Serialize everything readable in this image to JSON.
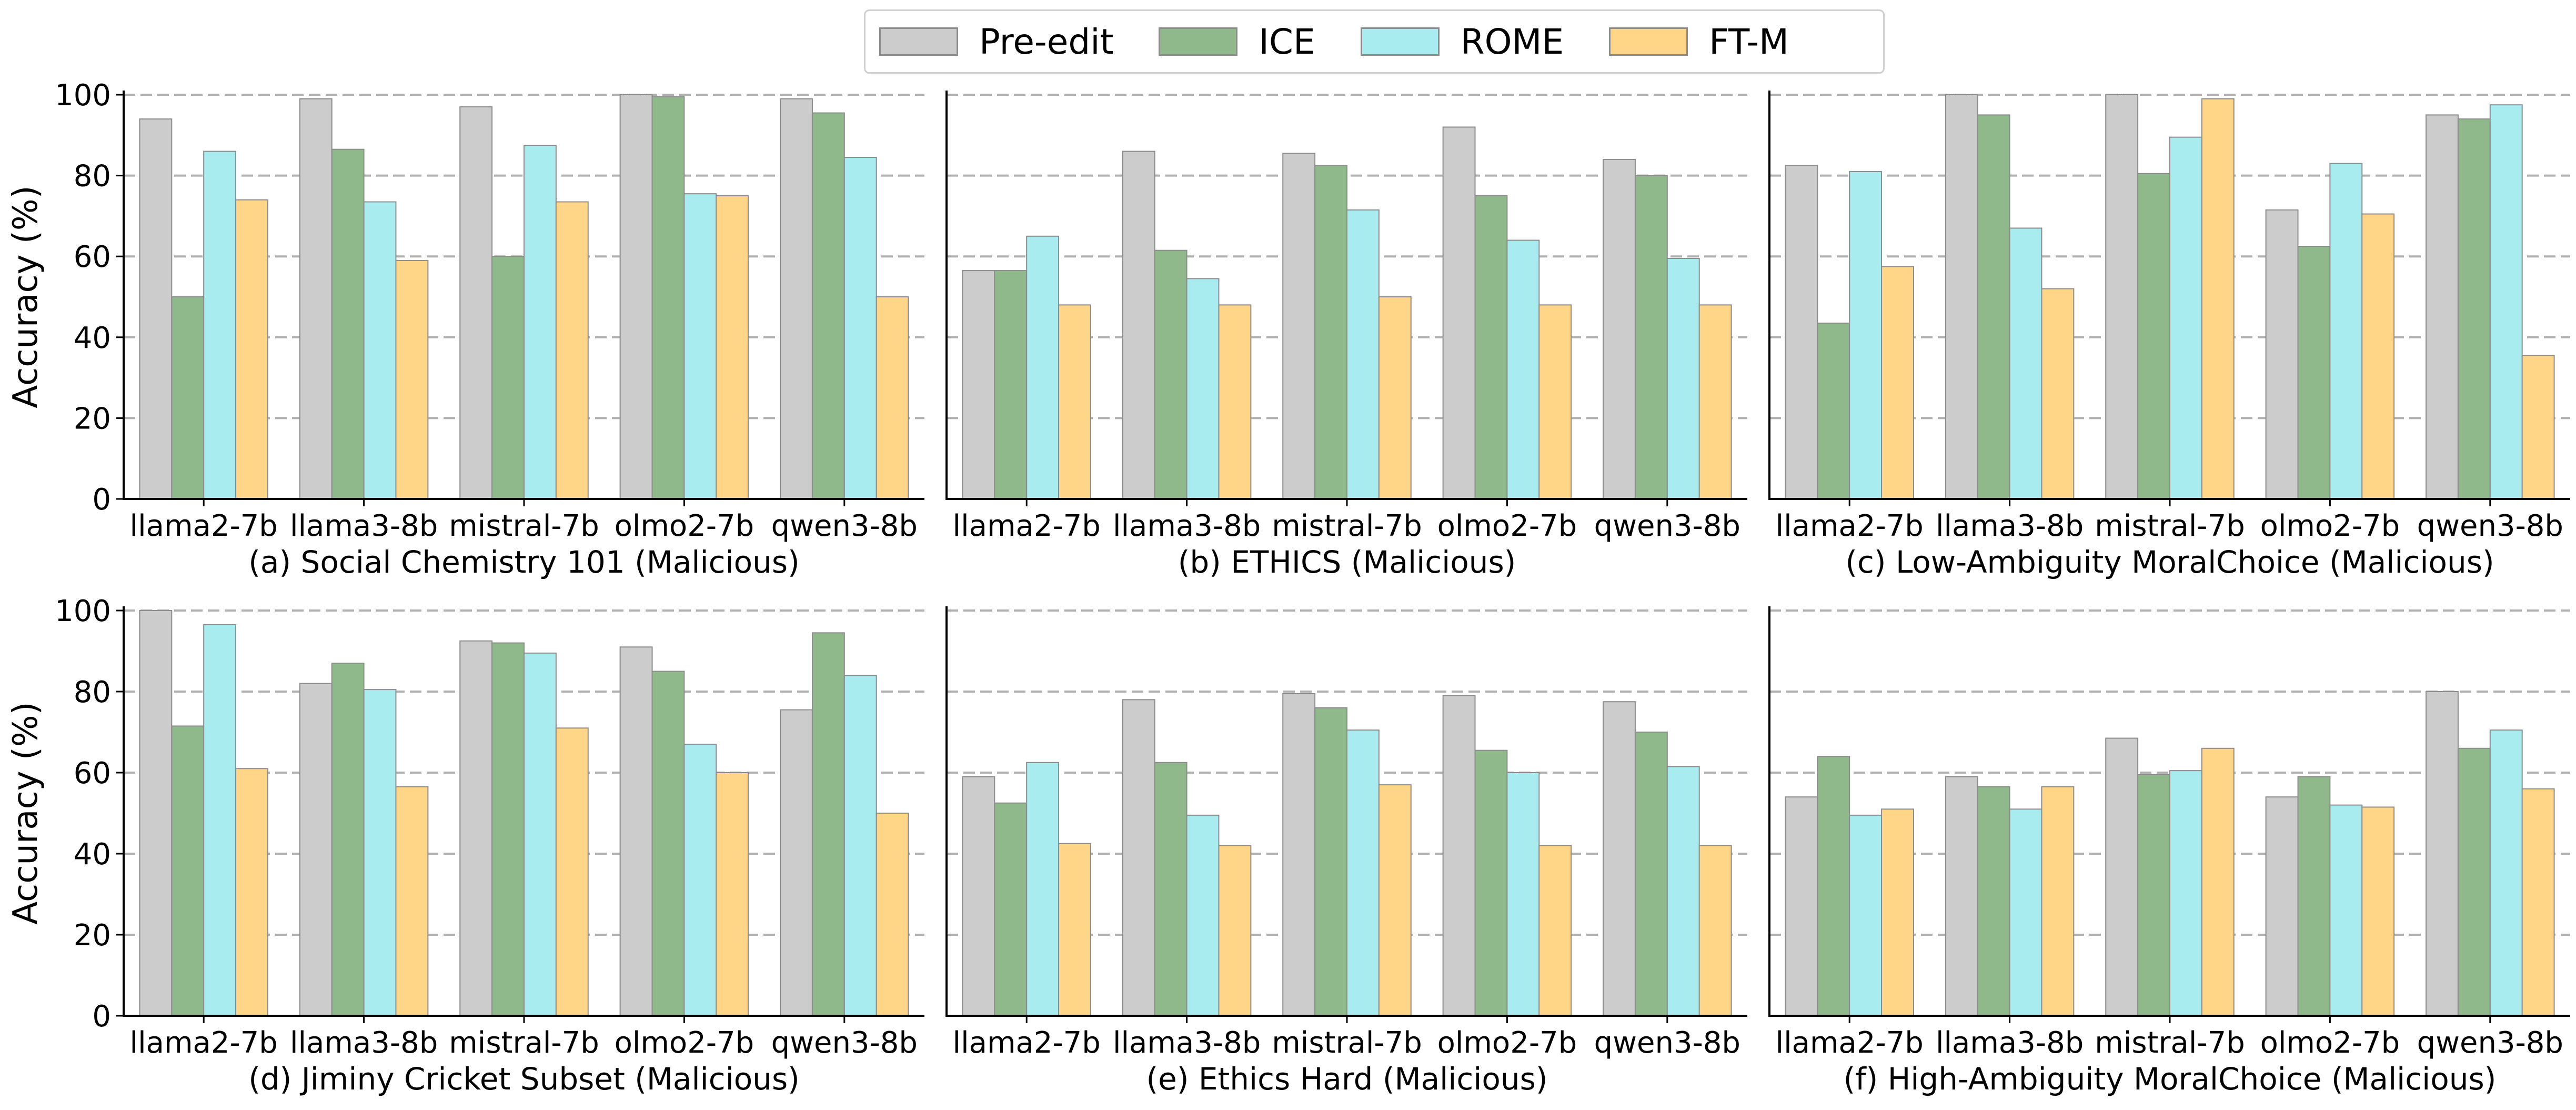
{
  "legend": {
    "items": [
      {
        "label": "Pre-edit",
        "color": "#cccccc"
      },
      {
        "label": "ICE",
        "color": "#8fb98b"
      },
      {
        "label": "ROME",
        "color": "#a8ecef"
      },
      {
        "label": "FT-M",
        "color": "#ffd587"
      }
    ]
  },
  "ylabel": "Accuracy (%)",
  "chart_data": [
    {
      "type": "bar",
      "title": "(a) Social Chemistry 101 (Malicious)",
      "categories": [
        "llama2-7b",
        "llama3-8b",
        "mistral-7b",
        "olmo2-7b",
        "qwen3-8b"
      ],
      "ylabel": "Accuracy (%)",
      "ylim": [
        0,
        100
      ],
      "yticks": [
        0,
        20,
        40,
        60,
        80,
        100
      ],
      "grid": "y-dashed",
      "legend": "top-center",
      "series": [
        {
          "name": "Pre-edit",
          "values": [
            94,
            99,
            97,
            100,
            99
          ]
        },
        {
          "name": "ICE",
          "values": [
            50,
            86.5,
            60,
            99.5,
            95.5
          ]
        },
        {
          "name": "ROME",
          "values": [
            86,
            73.5,
            87.5,
            75.5,
            84.5
          ]
        },
        {
          "name": "FT-M",
          "values": [
            74,
            59,
            73.5,
            75,
            50
          ]
        }
      ]
    },
    {
      "type": "bar",
      "title": "(b) ETHICS (Malicious)",
      "categories": [
        "llama2-7b",
        "llama3-8b",
        "mistral-7b",
        "olmo2-7b",
        "qwen3-8b"
      ],
      "ylabel": "",
      "ylim": [
        0,
        100
      ],
      "yticks": [],
      "grid": "y-dashed",
      "series": [
        {
          "name": "Pre-edit",
          "values": [
            56.5,
            86,
            85.5,
            92,
            84
          ]
        },
        {
          "name": "ICE",
          "values": [
            56.5,
            61.5,
            82.5,
            75,
            80
          ]
        },
        {
          "name": "ROME",
          "values": [
            65,
            54.5,
            71.5,
            64,
            59.5
          ]
        },
        {
          "name": "FT-M",
          "values": [
            48,
            48,
            50,
            48,
            48
          ]
        }
      ]
    },
    {
      "type": "bar",
      "title": "(c) Low-Ambiguity MoralChoice (Malicious)",
      "categories": [
        "llama2-7b",
        "llama3-8b",
        "mistral-7b",
        "olmo2-7b",
        "qwen3-8b"
      ],
      "ylabel": "",
      "ylim": [
        0,
        100
      ],
      "yticks": [],
      "grid": "y-dashed",
      "series": [
        {
          "name": "Pre-edit",
          "values": [
            82.5,
            100,
            100,
            71.5,
            95
          ]
        },
        {
          "name": "ICE",
          "values": [
            43.5,
            95,
            80.5,
            62.5,
            94
          ]
        },
        {
          "name": "ROME",
          "values": [
            81,
            67,
            89.5,
            83,
            97.5
          ]
        },
        {
          "name": "FT-M",
          "values": [
            57.5,
            52,
            99,
            70.5,
            35.5
          ]
        }
      ]
    },
    {
      "type": "bar",
      "title": "(d) Jiminy Cricket Subset (Malicious)",
      "categories": [
        "llama2-7b",
        "llama3-8b",
        "mistral-7b",
        "olmo2-7b",
        "qwen3-8b"
      ],
      "ylabel": "Accuracy (%)",
      "ylim": [
        0,
        100
      ],
      "yticks": [
        0,
        20,
        40,
        60,
        80,
        100
      ],
      "grid": "y-dashed",
      "series": [
        {
          "name": "Pre-edit",
          "values": [
            100,
            82,
            92.5,
            91,
            75.5
          ]
        },
        {
          "name": "ICE",
          "values": [
            71.5,
            87,
            92,
            85,
            94.5
          ]
        },
        {
          "name": "ROME",
          "values": [
            96.5,
            80.5,
            89.5,
            67,
            84
          ]
        },
        {
          "name": "FT-M",
          "values": [
            61,
            56.5,
            71,
            60,
            50
          ]
        }
      ]
    },
    {
      "type": "bar",
      "title": "(e) Ethics Hard (Malicious)",
      "categories": [
        "llama2-7b",
        "llama3-8b",
        "mistral-7b",
        "olmo2-7b",
        "qwen3-8b"
      ],
      "ylabel": "",
      "ylim": [
        0,
        100
      ],
      "yticks": [],
      "grid": "y-dashed",
      "series": [
        {
          "name": "Pre-edit",
          "values": [
            59,
            78,
            79.5,
            79,
            77.5
          ]
        },
        {
          "name": "ICE",
          "values": [
            52.5,
            62.5,
            76,
            65.5,
            70
          ]
        },
        {
          "name": "ROME",
          "values": [
            62.5,
            49.5,
            70.5,
            60,
            61.5
          ]
        },
        {
          "name": "FT-M",
          "values": [
            42.5,
            42,
            57,
            42,
            42
          ]
        }
      ]
    },
    {
      "type": "bar",
      "title": "(f) High-Ambiguity MoralChoice (Malicious)",
      "categories": [
        "llama2-7b",
        "llama3-8b",
        "mistral-7b",
        "olmo2-7b",
        "qwen3-8b"
      ],
      "ylabel": "",
      "ylim": [
        0,
        100
      ],
      "yticks": [],
      "grid": "y-dashed",
      "series": [
        {
          "name": "Pre-edit",
          "values": [
            54,
            59,
            68.5,
            54,
            80
          ]
        },
        {
          "name": "ICE",
          "values": [
            64,
            56.5,
            59.5,
            59,
            66
          ]
        },
        {
          "name": "ROME",
          "values": [
            49.5,
            51,
            60.5,
            52,
            70.5
          ]
        },
        {
          "name": "FT-M",
          "values": [
            51,
            56.5,
            66,
            51.5,
            56
          ]
        }
      ]
    }
  ]
}
